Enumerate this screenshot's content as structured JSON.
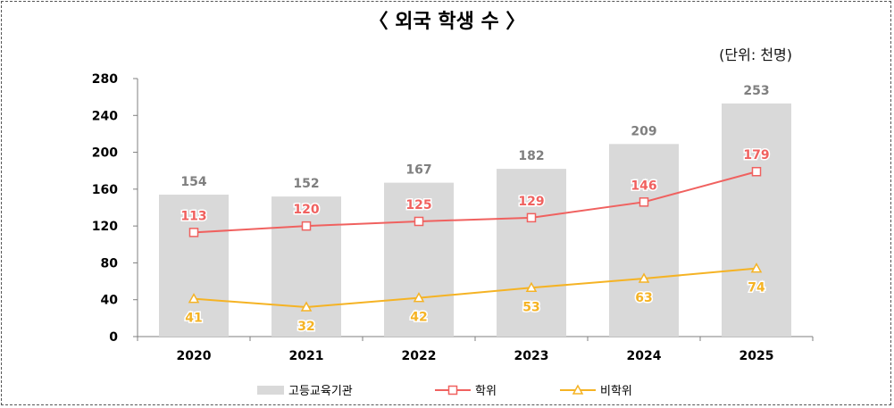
{
  "chart_data": {
    "type": "bar+line",
    "title": "〈 외국 학생 수 〉",
    "unit_label": "(단위: 천명)",
    "categories": [
      "2020",
      "2021",
      "2022",
      "2023",
      "2024",
      "2025"
    ],
    "ylim": [
      0,
      280
    ],
    "yticks": [
      "0",
      "40",
      "80",
      "120",
      "160",
      "200",
      "240",
      "280"
    ],
    "grid": false,
    "legend_position": "bottom",
    "series": [
      {
        "name": "고등교육기관",
        "type": "bar",
        "color": "#d9d9d9",
        "label_color": "#7f7f7f",
        "values": [
          154,
          152,
          167,
          182,
          209,
          253
        ]
      },
      {
        "name": "학위",
        "type": "line",
        "marker": "square",
        "color": "#f0615f",
        "values": [
          113,
          120,
          125,
          129,
          146,
          179
        ]
      },
      {
        "name": "비학위",
        "type": "line",
        "marker": "triangle",
        "color": "#f5b324",
        "values": [
          41,
          32,
          42,
          53,
          63,
          74
        ]
      }
    ]
  }
}
